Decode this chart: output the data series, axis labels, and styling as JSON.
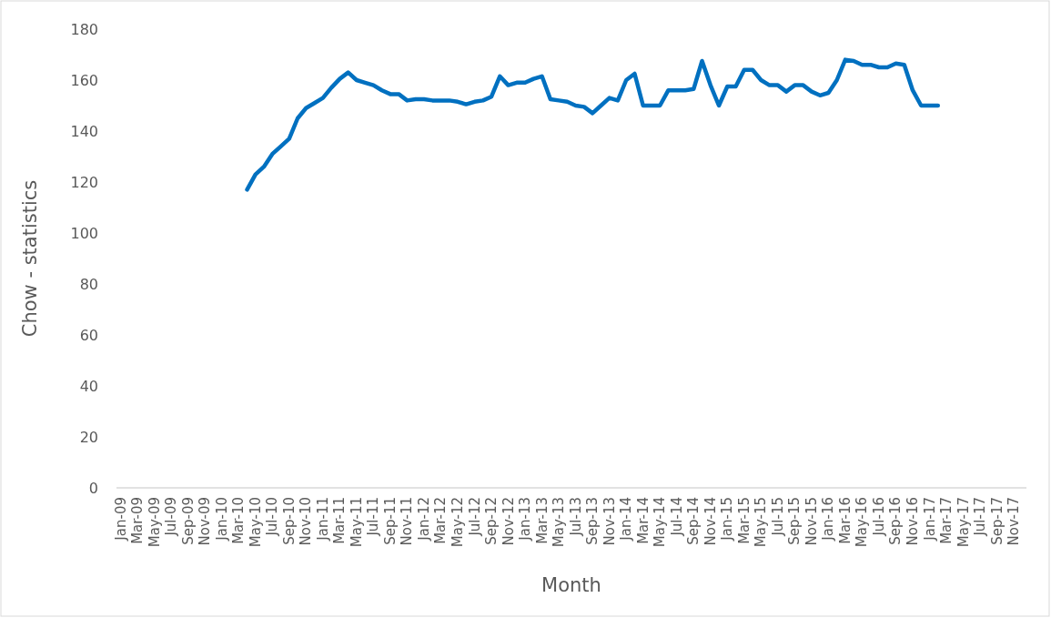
{
  "chart_data": {
    "type": "line",
    "xlabel": "Month",
    "ylabel": "Chow - statistics",
    "categories": [
      "Jan-09",
      null,
      "Mar-09",
      null,
      "May-09",
      null,
      "Jul-09",
      null,
      "Sep-09",
      null,
      "Nov-09",
      null,
      "Jan-10",
      null,
      "Mar-10",
      null,
      "May-10",
      null,
      "Jul-10",
      null,
      "Sep-10",
      null,
      "Nov-10",
      null,
      "Jan-11",
      null,
      "Mar-11",
      null,
      "May-11",
      null,
      "Jul-11",
      null,
      "Sep-11",
      null,
      "Nov-11",
      null,
      "Jan-12",
      null,
      "Mar-12",
      null,
      "May-12",
      null,
      "Jul-12",
      null,
      "Sep-12",
      null,
      "Nov-12",
      null,
      "Jan-13",
      null,
      "Mar-13",
      null,
      "May-13",
      null,
      "Jul-13",
      null,
      "Sep-13",
      null,
      "Nov-13",
      null,
      "Jan-14",
      null,
      "Mar-14",
      null,
      "May-14",
      null,
      "Jul-14",
      null,
      "Sep-14",
      null,
      "Nov-14",
      null,
      "Jan-15",
      null,
      "Mar-15",
      null,
      "May-15",
      null,
      "Jul-15",
      null,
      "Sep-15",
      null,
      "Nov-15",
      null,
      "Jan-16",
      null,
      "Mar-16",
      null,
      "May-16",
      null,
      "Jul-16",
      null,
      "Sep-16",
      null,
      "Nov-16",
      null,
      "Jan-17",
      null,
      "Mar-17",
      null,
      "May-17",
      null,
      "Jul-17",
      null,
      "Sep-17",
      null,
      "Nov-17",
      null
    ],
    "series": [
      {
        "color": "#0070c0",
        "values": [
          null,
          null,
          null,
          null,
          null,
          null,
          null,
          null,
          null,
          null,
          null,
          null,
          null,
          null,
          null,
          117,
          123,
          126,
          131,
          134,
          137,
          145,
          149,
          151,
          153,
          157,
          160.5,
          163,
          160,
          159,
          158,
          156,
          154.5,
          154.5,
          152,
          152.5,
          152.5,
          152,
          152,
          152,
          151.5,
          150.5,
          151.5,
          152,
          153.5,
          161.5,
          158,
          159,
          159,
          160.5,
          161.5,
          152.5,
          152,
          151.5,
          150,
          149.5,
          147,
          150,
          153,
          152,
          160,
          162.5,
          150,
          150,
          150,
          156,
          156,
          156,
          156.5,
          167.5,
          158,
          150,
          157.5,
          157.5,
          164,
          164,
          160,
          158,
          158,
          155.5,
          158,
          158,
          155.5,
          154,
          155,
          160,
          168,
          167.5,
          166,
          166,
          165,
          165,
          166.5,
          166,
          156,
          150,
          150,
          150,
          null,
          null,
          null,
          null,
          null,
          null,
          null,
          null,
          null,
          null
        ]
      }
    ],
    "ylim": [
      0,
      180
    ],
    "yticks": [
      0,
      20,
      40,
      60,
      80,
      100,
      120,
      140,
      160,
      180
    ],
    "grid": false,
    "marker": "none",
    "line_style": "solid"
  }
}
